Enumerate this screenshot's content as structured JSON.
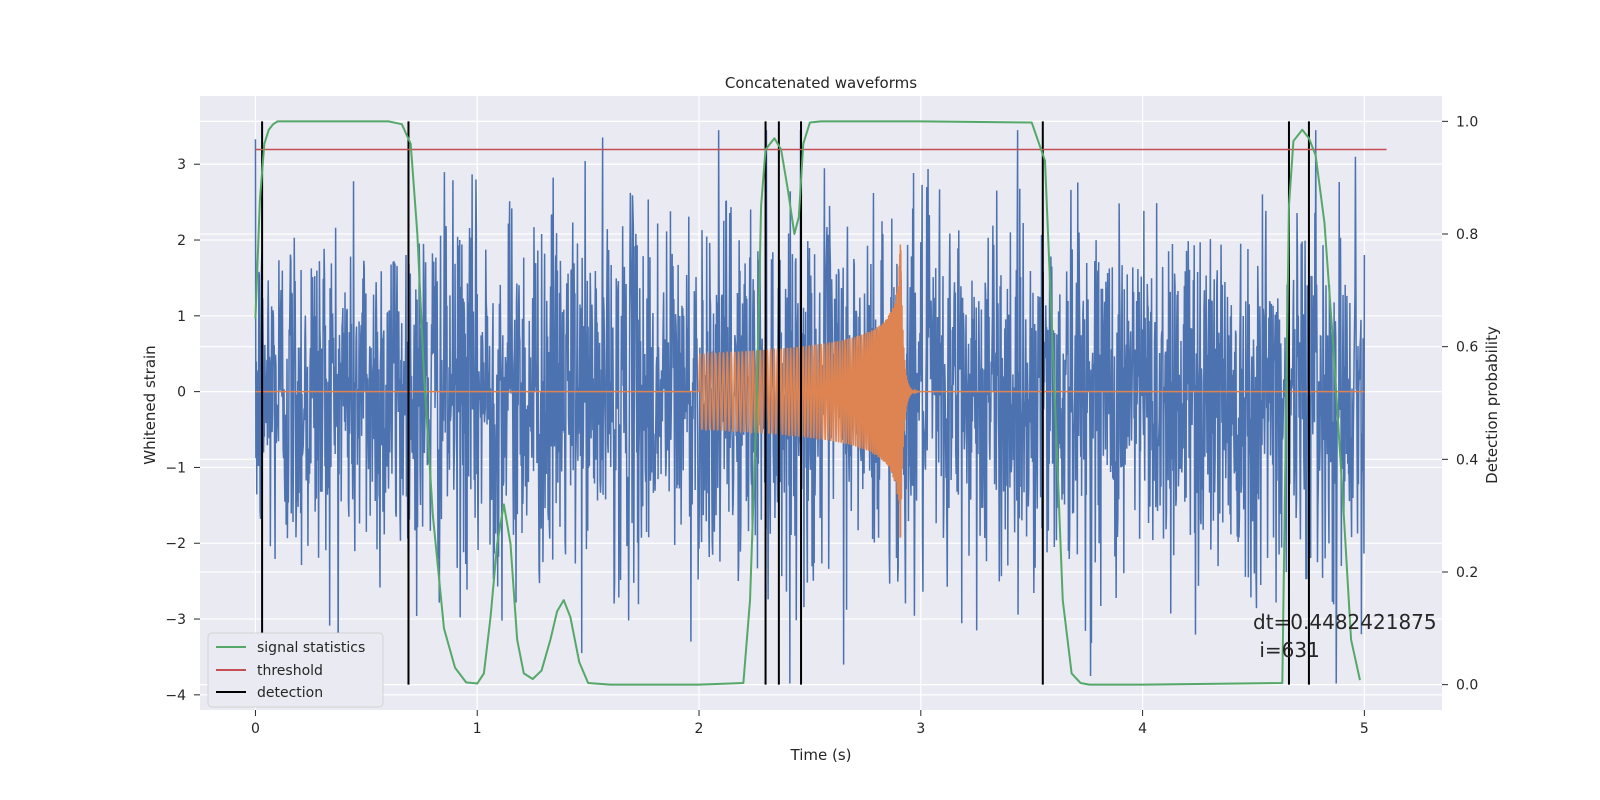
{
  "chart_data": {
    "type": "line",
    "title": "Concatenated waveforms",
    "xlabel": "Time (s)",
    "ylabel_left": "Whitened strain",
    "ylabel_right": "Detection probability",
    "xlim": [
      -0.25,
      5.35
    ],
    "ylim_left": [
      -4.2,
      3.9
    ],
    "ylim_right": [
      -0.045,
      1.045
    ],
    "xticks": [
      0,
      1,
      2,
      3,
      4,
      5
    ],
    "yticks_left": [
      -4,
      -3,
      -2,
      -1,
      0,
      1,
      2,
      3
    ],
    "yticks_right": [
      0.0,
      0.2,
      0.4,
      0.6,
      0.8,
      1.0
    ],
    "grid": true,
    "background": "#EAEAF2",
    "legend_location": "lower-left",
    "legend": [
      {
        "label": "signal statistics",
        "color": "#55A868"
      },
      {
        "label": "threshold",
        "color": "#C44E52"
      },
      {
        "label": "detection",
        "color": "#000000"
      }
    ],
    "series": [
      {
        "kind": "noise",
        "axis": "left",
        "color": "#4C72B0",
        "x_range": [
          0,
          5
        ],
        "typical_amplitude": 1.2,
        "max": 3.45,
        "min": -3.85
      },
      {
        "kind": "chirp",
        "axis": "left",
        "color": "#DD8452",
        "x_range": [
          0,
          5
        ],
        "chirp_start": 2.0,
        "merger": 2.91,
        "amplitude_start": 0.5,
        "amplitude_peak": 2.05
      },
      {
        "name": "signal statistics",
        "axis": "right",
        "color": "#55A868",
        "x": [
          0.0,
          0.02,
          0.04,
          0.06,
          0.08,
          0.1,
          0.2,
          0.4,
          0.6,
          0.66,
          0.7,
          0.73,
          0.76,
          0.8,
          0.85,
          0.9,
          0.95,
          1.0,
          1.03,
          1.06,
          1.09,
          1.12,
          1.15,
          1.18,
          1.21,
          1.25,
          1.29,
          1.33,
          1.36,
          1.39,
          1.42,
          1.46,
          1.5,
          1.6,
          2.0,
          2.2,
          2.23,
          2.26,
          2.28,
          2.3,
          2.34,
          2.37,
          2.4,
          2.43,
          2.45,
          2.47,
          2.5,
          2.55,
          3.0,
          3.5,
          3.56,
          3.6,
          3.64,
          3.68,
          3.72,
          3.76,
          4.0,
          4.63,
          4.66,
          4.68,
          4.72,
          4.75,
          4.78,
          4.82,
          4.86,
          4.9,
          4.94,
          4.98
        ],
        "y": [
          0.65,
          0.86,
          0.96,
          0.985,
          0.995,
          1.0,
          1.0,
          1.0,
          1.0,
          0.995,
          0.96,
          0.8,
          0.55,
          0.3,
          0.1,
          0.03,
          0.004,
          0.002,
          0.02,
          0.12,
          0.25,
          0.32,
          0.25,
          0.08,
          0.02,
          0.01,
          0.025,
          0.08,
          0.13,
          0.15,
          0.12,
          0.04,
          0.003,
          0.0,
          0.0,
          0.003,
          0.15,
          0.5,
          0.85,
          0.95,
          0.97,
          0.95,
          0.88,
          0.8,
          0.83,
          0.96,
          0.998,
          1.0,
          1.0,
          0.998,
          0.93,
          0.55,
          0.15,
          0.02,
          0.003,
          0.0,
          0.0,
          0.003,
          0.85,
          0.965,
          0.985,
          0.97,
          0.94,
          0.82,
          0.6,
          0.35,
          0.08,
          0.008
        ]
      },
      {
        "name": "threshold",
        "axis": "right",
        "color": "#C44E52",
        "x": [
          0.0,
          5.1
        ],
        "y": [
          0.95,
          0.95
        ]
      }
    ],
    "detections": [
      0.03,
      0.69,
      2.3,
      2.36,
      2.46,
      3.55,
      4.66,
      4.75
    ],
    "detection_range": [
      0.0,
      1.0
    ],
    "annotation_lines": [
      "dt=0.4482421875",
      " i=631"
    ]
  }
}
